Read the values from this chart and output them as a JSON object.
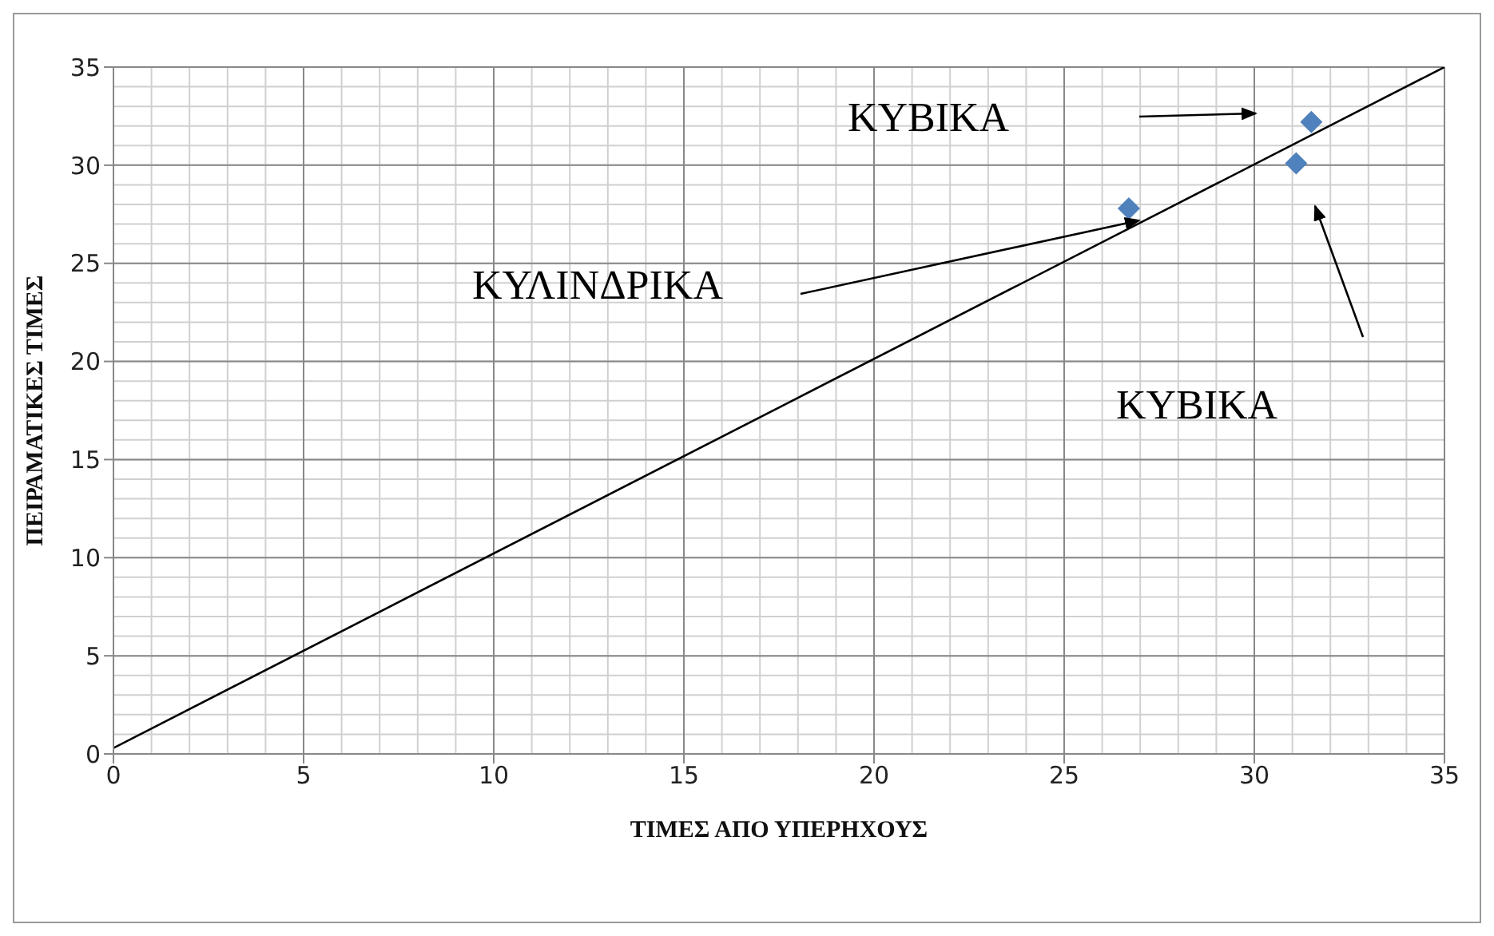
{
  "chart_data": {
    "type": "scatter",
    "xlabel": "ΤΙΜΕΣ ΑΠΟ ΥΠΕΡΗΧΟΥΣ",
    "ylabel": "ΠΕΙΡΑΜΑΤΙΚΕΣ ΤΙΜΕΣ",
    "series": [
      {
        "type": "scatter",
        "color": "#4f81bd",
        "marker": "diamond",
        "x": [
          26.7,
          31.1,
          31.5
        ],
        "values": [
          27.8,
          30.1,
          32.2
        ]
      },
      {
        "type": "line",
        "color": "#000000",
        "marker": "none",
        "x": [
          0,
          35
        ],
        "values": [
          0.3,
          35
        ]
      }
    ],
    "xlim": [
      0,
      35
    ],
    "xticks": [
      0,
      5,
      10,
      15,
      20,
      25,
      30,
      35
    ],
    "ylim": [
      0,
      35
    ],
    "yticks": [
      0,
      5,
      10,
      15,
      20,
      25,
      30,
      35
    ],
    "grid": true,
    "annotations": [
      "ΚΥΒΙΚΑ",
      "ΚΥΛΙΝΔΡΙΚΑ",
      "ΚΥΒΙΚΑ"
    ]
  }
}
